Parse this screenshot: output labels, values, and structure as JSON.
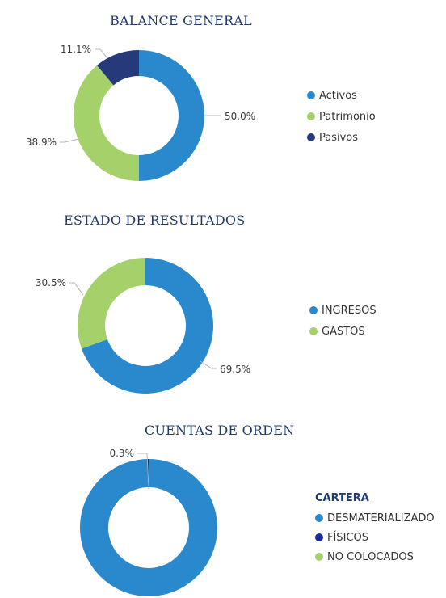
{
  "colors": {
    "blue": "#2a89cc",
    "green": "#a4d16a",
    "navy": "#263a7b",
    "dark_navy": "#1a2a9c"
  },
  "chart_data": [
    {
      "type": "pie",
      "title": "BALANCE GENERAL",
      "legend_position": "right",
      "slices": [
        {
          "name": "Activos",
          "value": 50.0,
          "label": "50.0%",
          "color": "#2a89cc"
        },
        {
          "name": "Patrimonio",
          "value": 38.9,
          "label": "38.9%",
          "color": "#a4d16a"
        },
        {
          "name": "Pasivos",
          "value": 11.1,
          "label": "11.1%",
          "color": "#263a7b"
        }
      ]
    },
    {
      "type": "pie",
      "title": "ESTADO DE RESULTADOS",
      "legend_position": "right",
      "slices": [
        {
          "name": "INGRESOS",
          "value": 69.5,
          "label": "69.5%",
          "color": "#2a89cc"
        },
        {
          "name": "GASTOS",
          "value": 30.5,
          "label": "30.5%",
          "color": "#a4d16a"
        }
      ]
    },
    {
      "type": "pie",
      "title": "CUENTAS DE ORDEN",
      "legend_title": "CARTERA",
      "legend_position": "right",
      "slices": [
        {
          "name": "DESMATERIALIZADO",
          "value": 99.7,
          "label": "",
          "color": "#2a89cc"
        },
        {
          "name": "FÍSICOS",
          "value": 0.3,
          "label": "0.3%",
          "color": "#1a2a9c"
        },
        {
          "name": "NO COLOCADOS",
          "value": 0.0,
          "label": "",
          "color": "#a4d16a"
        }
      ]
    }
  ]
}
